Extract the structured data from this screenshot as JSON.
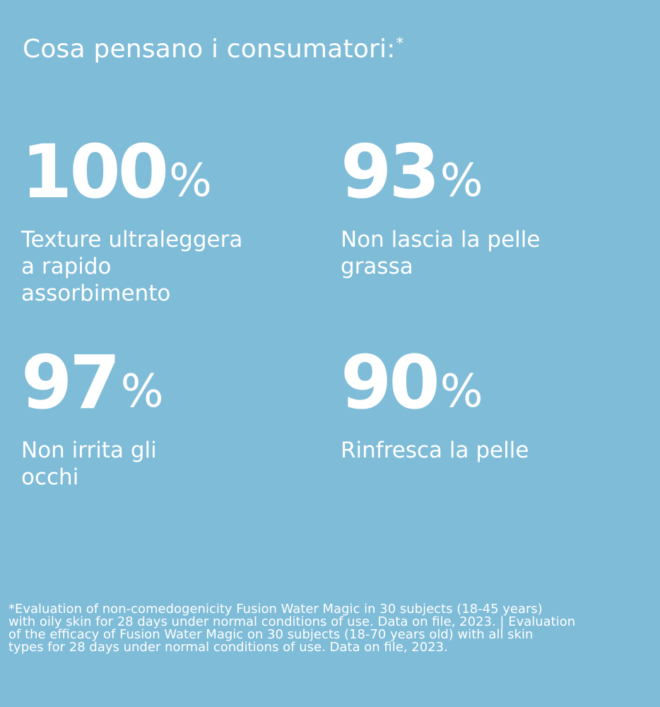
{
  "page": {
    "title": "Cosa pensano i consumatori:",
    "title_mark": "*",
    "background_color": "#7fbcd8",
    "text_color": "#ffffff"
  },
  "stats": [
    {
      "value": "100",
      "unit": "%",
      "description": "Texture ultraleggera\na rapido\nassorbimento"
    },
    {
      "value": "93",
      "unit": "%",
      "description": "Non lascia la pelle\ngrassa"
    },
    {
      "value": "97",
      "unit": "%",
      "description": "Non irrita gli\nocchi"
    },
    {
      "value": "90",
      "unit": "%",
      "description": "Rinfresca la pelle"
    }
  ],
  "footnote": "*Evaluation of non-comedogenicity Fusion Water Magic in 30 subjects (18-45 years)\nwith oily skin for 28 days under normal conditions of use. Data on file, 2023. | Evaluation\nof the efficacy of Fusion Water Magic on 30 subjects (18-70 years old) with all skin\ntypes for 28 days under normal conditions of use. Data on file, 2023."
}
